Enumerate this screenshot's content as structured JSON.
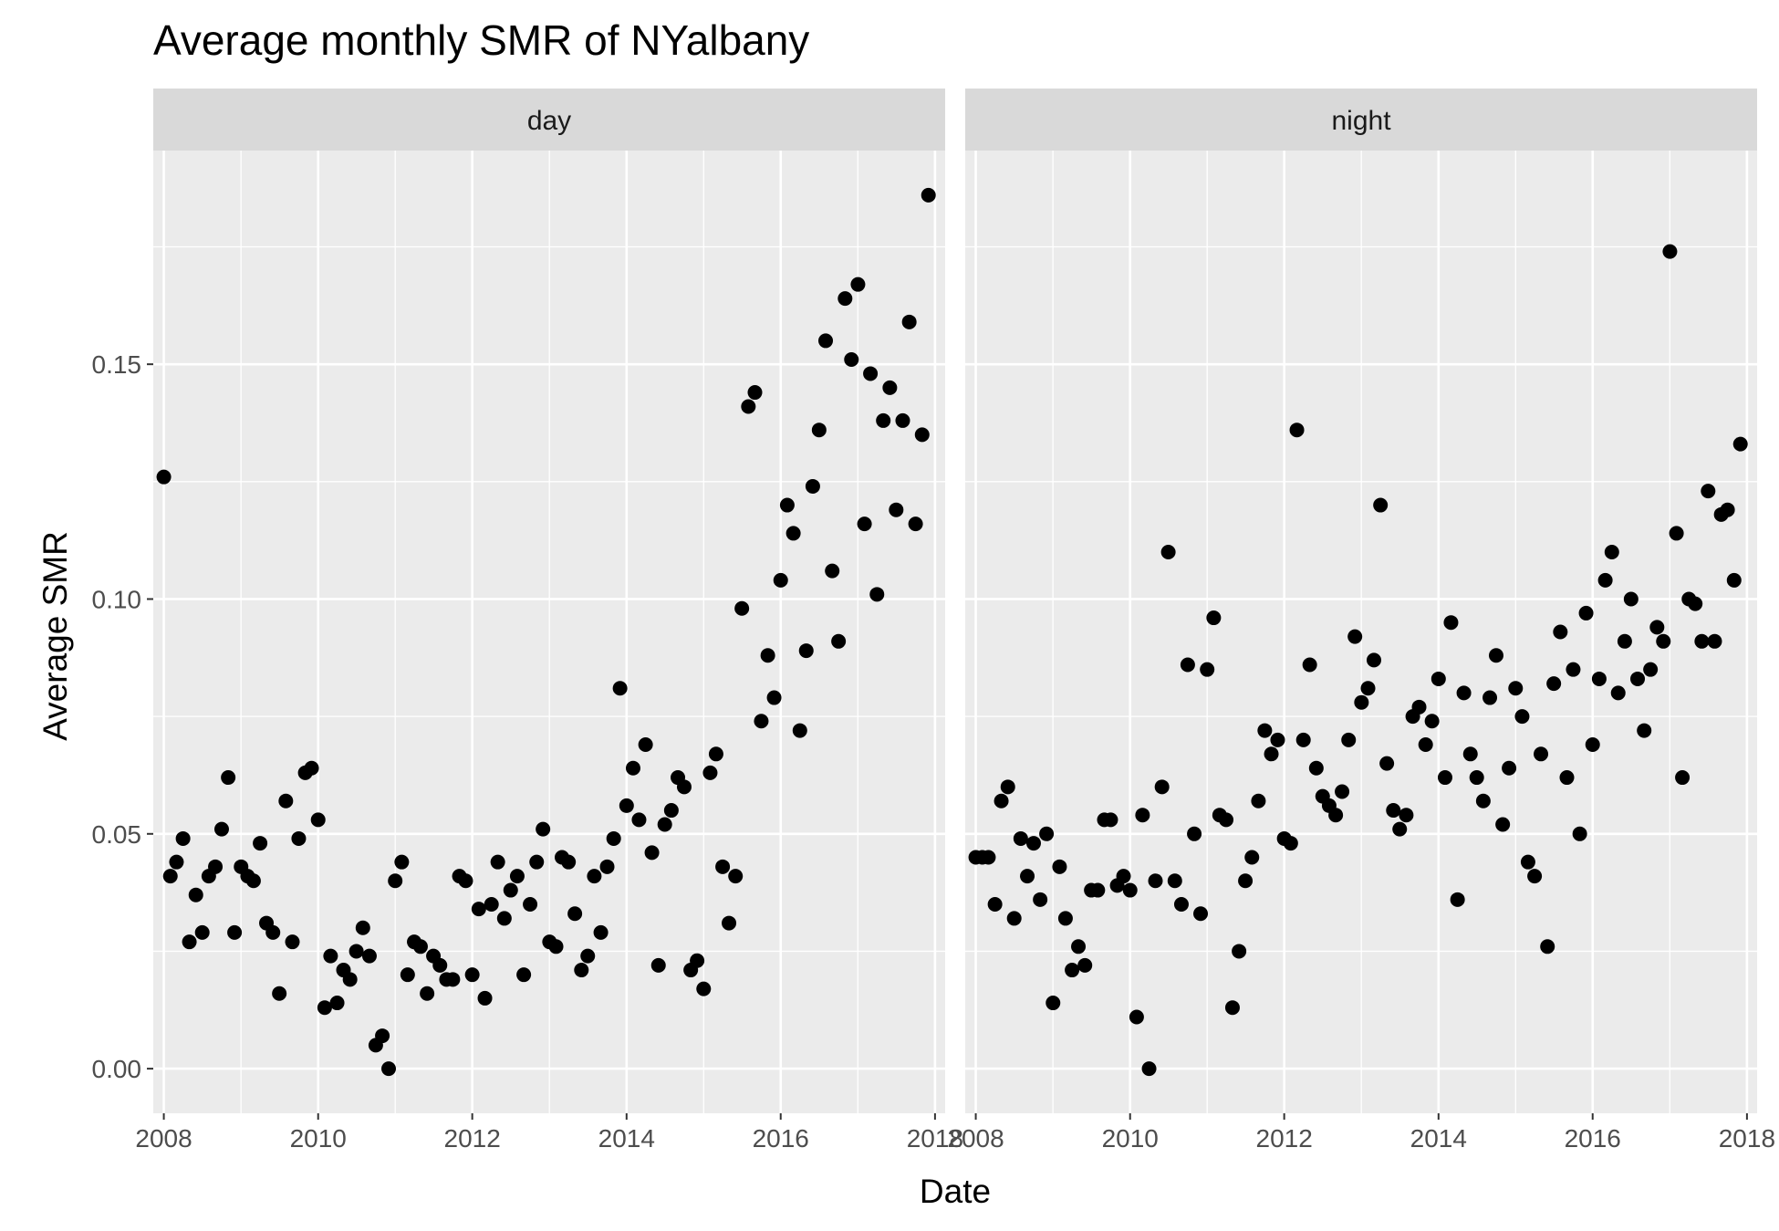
{
  "chart_data": {
    "type": "scatter",
    "title": "Average monthly SMR of NYalbany",
    "xlabel": "Date",
    "ylabel": "Average SMR",
    "x_range": [
      "2007-11-12",
      "2018-02-18"
    ],
    "ylim": [
      -0.0095,
      0.1955
    ],
    "x_ticks": [
      "2008",
      "2010",
      "2012",
      "2014",
      "2016",
      "2018"
    ],
    "y_ticks": [
      "0.00",
      "0.05",
      "0.10",
      "0.15"
    ],
    "grid": true,
    "point_color": "#000000",
    "panel_background": "#ebebeb",
    "strip_background": "#d9d9d9",
    "panels": [
      {
        "name": "day",
        "points": [
          [
            "2008-01-01",
            0.126
          ],
          [
            "2008-02-01",
            0.041
          ],
          [
            "2008-03-01",
            0.044
          ],
          [
            "2008-04-01",
            0.049
          ],
          [
            "2008-05-01",
            0.027
          ],
          [
            "2008-06-01",
            0.037
          ],
          [
            "2008-07-01",
            0.029
          ],
          [
            "2008-08-01",
            0.041
          ],
          [
            "2008-09-01",
            0.043
          ],
          [
            "2008-10-01",
            0.051
          ],
          [
            "2008-11-01",
            0.062
          ],
          [
            "2008-12-01",
            0.029
          ],
          [
            "2009-01-01",
            0.043
          ],
          [
            "2009-02-01",
            0.041
          ],
          [
            "2009-03-01",
            0.04
          ],
          [
            "2009-04-01",
            0.048
          ],
          [
            "2009-05-01",
            0.031
          ],
          [
            "2009-06-01",
            0.029
          ],
          [
            "2009-07-01",
            0.016
          ],
          [
            "2009-08-01",
            0.057
          ],
          [
            "2009-09-01",
            0.027
          ],
          [
            "2009-10-01",
            0.049
          ],
          [
            "2009-11-01",
            0.063
          ],
          [
            "2009-12-01",
            0.064
          ],
          [
            "2010-01-01",
            0.053
          ],
          [
            "2010-02-01",
            0.013
          ],
          [
            "2010-03-01",
            0.024
          ],
          [
            "2010-04-01",
            0.014
          ],
          [
            "2010-05-01",
            0.021
          ],
          [
            "2010-06-01",
            0.019
          ],
          [
            "2010-07-01",
            0.025
          ],
          [
            "2010-08-01",
            0.03
          ],
          [
            "2010-09-01",
            0.024
          ],
          [
            "2010-10-01",
            0.005
          ],
          [
            "2010-11-01",
            0.007
          ],
          [
            "2010-12-01",
            0.0
          ],
          [
            "2011-01-01",
            0.04
          ],
          [
            "2011-02-01",
            0.044
          ],
          [
            "2011-03-01",
            0.02
          ],
          [
            "2011-04-01",
            0.027
          ],
          [
            "2011-05-01",
            0.026
          ],
          [
            "2011-06-01",
            0.016
          ],
          [
            "2011-07-01",
            0.024
          ],
          [
            "2011-08-01",
            0.022
          ],
          [
            "2011-09-01",
            0.019
          ],
          [
            "2011-10-01",
            0.019
          ],
          [
            "2011-11-01",
            0.041
          ],
          [
            "2011-12-01",
            0.04
          ],
          [
            "2012-01-01",
            0.02
          ],
          [
            "2012-02-01",
            0.034
          ],
          [
            "2012-03-01",
            0.015
          ],
          [
            "2012-04-01",
            0.035
          ],
          [
            "2012-05-01",
            0.044
          ],
          [
            "2012-06-01",
            0.032
          ],
          [
            "2012-07-01",
            0.038
          ],
          [
            "2012-08-01",
            0.041
          ],
          [
            "2012-09-01",
            0.02
          ],
          [
            "2012-10-01",
            0.035
          ],
          [
            "2012-11-01",
            0.044
          ],
          [
            "2012-12-01",
            0.051
          ],
          [
            "2013-01-01",
            0.027
          ],
          [
            "2013-02-01",
            0.026
          ],
          [
            "2013-03-01",
            0.045
          ],
          [
            "2013-04-01",
            0.044
          ],
          [
            "2013-05-01",
            0.033
          ],
          [
            "2013-06-01",
            0.021
          ],
          [
            "2013-07-01",
            0.024
          ],
          [
            "2013-08-01",
            0.041
          ],
          [
            "2013-09-01",
            0.029
          ],
          [
            "2013-10-01",
            0.043
          ],
          [
            "2013-11-01",
            0.049
          ],
          [
            "2013-12-01",
            0.081
          ],
          [
            "2014-01-01",
            0.056
          ],
          [
            "2014-02-01",
            0.064
          ],
          [
            "2014-03-01",
            0.053
          ],
          [
            "2014-04-01",
            0.069
          ],
          [
            "2014-05-01",
            0.046
          ],
          [
            "2014-06-01",
            0.022
          ],
          [
            "2014-07-01",
            0.052
          ],
          [
            "2014-08-01",
            0.055
          ],
          [
            "2014-09-01",
            0.062
          ],
          [
            "2014-10-01",
            0.06
          ],
          [
            "2014-11-01",
            0.021
          ],
          [
            "2014-12-01",
            0.023
          ],
          [
            "2015-01-01",
            0.017
          ],
          [
            "2015-02-01",
            0.063
          ],
          [
            "2015-03-01",
            0.067
          ],
          [
            "2015-04-01",
            0.043
          ],
          [
            "2015-05-01",
            0.031
          ],
          [
            "2015-06-01",
            0.041
          ],
          [
            "2015-07-01",
            0.098
          ],
          [
            "2015-08-01",
            0.141
          ],
          [
            "2015-09-01",
            0.144
          ],
          [
            "2015-10-01",
            0.074
          ],
          [
            "2015-11-01",
            0.088
          ],
          [
            "2015-12-01",
            0.079
          ],
          [
            "2016-01-01",
            0.104
          ],
          [
            "2016-02-01",
            0.12
          ],
          [
            "2016-03-01",
            0.114
          ],
          [
            "2016-04-01",
            0.072
          ],
          [
            "2016-05-01",
            0.089
          ],
          [
            "2016-06-01",
            0.124
          ],
          [
            "2016-07-01",
            0.136
          ],
          [
            "2016-08-01",
            0.155
          ],
          [
            "2016-09-01",
            0.106
          ],
          [
            "2016-10-01",
            0.091
          ],
          [
            "2016-11-01",
            0.164
          ],
          [
            "2016-12-01",
            0.151
          ],
          [
            "2017-01-01",
            0.167
          ],
          [
            "2017-02-01",
            0.116
          ],
          [
            "2017-03-01",
            0.148
          ],
          [
            "2017-04-01",
            0.101
          ],
          [
            "2017-05-01",
            0.138
          ],
          [
            "2017-06-01",
            0.145
          ],
          [
            "2017-07-01",
            0.119
          ],
          [
            "2017-08-01",
            0.138
          ],
          [
            "2017-09-01",
            0.159
          ],
          [
            "2017-10-01",
            0.116
          ],
          [
            "2017-11-01",
            0.135
          ],
          [
            "2017-12-01",
            0.186
          ]
        ]
      },
      {
        "name": "night",
        "points": [
          [
            "2008-01-01",
            0.045
          ],
          [
            "2008-02-01",
            0.045
          ],
          [
            "2008-03-01",
            0.045
          ],
          [
            "2008-04-01",
            0.035
          ],
          [
            "2008-05-01",
            0.057
          ],
          [
            "2008-06-01",
            0.06
          ],
          [
            "2008-07-01",
            0.032
          ],
          [
            "2008-08-01",
            0.049
          ],
          [
            "2008-09-01",
            0.041
          ],
          [
            "2008-10-01",
            0.048
          ],
          [
            "2008-11-01",
            0.036
          ],
          [
            "2008-12-01",
            0.05
          ],
          [
            "2009-01-01",
            0.014
          ],
          [
            "2009-02-01",
            0.043
          ],
          [
            "2009-03-01",
            0.032
          ],
          [
            "2009-04-01",
            0.021
          ],
          [
            "2009-05-01",
            0.026
          ],
          [
            "2009-06-01",
            0.022
          ],
          [
            "2009-07-01",
            0.038
          ],
          [
            "2009-08-01",
            0.038
          ],
          [
            "2009-09-01",
            0.053
          ],
          [
            "2009-10-01",
            0.053
          ],
          [
            "2009-11-01",
            0.039
          ],
          [
            "2009-12-01",
            0.041
          ],
          [
            "2010-01-01",
            0.038
          ],
          [
            "2010-02-01",
            0.011
          ],
          [
            "2010-03-01",
            0.054
          ],
          [
            "2010-04-01",
            0.0
          ],
          [
            "2010-05-01",
            0.04
          ],
          [
            "2010-06-01",
            0.06
          ],
          [
            "2010-07-01",
            0.11
          ],
          [
            "2010-08-01",
            0.04
          ],
          [
            "2010-09-01",
            0.035
          ],
          [
            "2010-10-01",
            0.086
          ],
          [
            "2010-11-01",
            0.05
          ],
          [
            "2010-12-01",
            0.033
          ],
          [
            "2011-01-01",
            0.085
          ],
          [
            "2011-02-01",
            0.096
          ],
          [
            "2011-03-01",
            0.054
          ],
          [
            "2011-04-01",
            0.053
          ],
          [
            "2011-05-01",
            0.013
          ],
          [
            "2011-06-01",
            0.025
          ],
          [
            "2011-07-01",
            0.04
          ],
          [
            "2011-08-01",
            0.045
          ],
          [
            "2011-09-01",
            0.057
          ],
          [
            "2011-10-01",
            0.072
          ],
          [
            "2011-11-01",
            0.067
          ],
          [
            "2011-12-01",
            0.07
          ],
          [
            "2012-01-01",
            0.049
          ],
          [
            "2012-02-01",
            0.048
          ],
          [
            "2012-03-01",
            0.136
          ],
          [
            "2012-04-01",
            0.07
          ],
          [
            "2012-05-01",
            0.086
          ],
          [
            "2012-06-01",
            0.064
          ],
          [
            "2012-07-01",
            0.058
          ],
          [
            "2012-08-01",
            0.056
          ],
          [
            "2012-09-01",
            0.054
          ],
          [
            "2012-10-01",
            0.059
          ],
          [
            "2012-11-01",
            0.07
          ],
          [
            "2012-12-01",
            0.092
          ],
          [
            "2013-01-01",
            0.078
          ],
          [
            "2013-02-01",
            0.081
          ],
          [
            "2013-03-01",
            0.087
          ],
          [
            "2013-04-01",
            0.12
          ],
          [
            "2013-05-01",
            0.065
          ],
          [
            "2013-06-01",
            0.055
          ],
          [
            "2013-07-01",
            0.051
          ],
          [
            "2013-08-01",
            0.054
          ],
          [
            "2013-09-01",
            0.075
          ],
          [
            "2013-10-01",
            0.077
          ],
          [
            "2013-11-01",
            0.069
          ],
          [
            "2013-12-01",
            0.074
          ],
          [
            "2014-01-01",
            0.083
          ],
          [
            "2014-02-01",
            0.062
          ],
          [
            "2014-03-01",
            0.095
          ],
          [
            "2014-04-01",
            0.036
          ],
          [
            "2014-05-01",
            0.08
          ],
          [
            "2014-06-01",
            0.067
          ],
          [
            "2014-07-01",
            0.062
          ],
          [
            "2014-08-01",
            0.057
          ],
          [
            "2014-09-01",
            0.079
          ],
          [
            "2014-10-01",
            0.088
          ],
          [
            "2014-11-01",
            0.052
          ],
          [
            "2014-12-01",
            0.064
          ],
          [
            "2015-01-01",
            0.081
          ],
          [
            "2015-02-01",
            0.075
          ],
          [
            "2015-03-01",
            0.044
          ],
          [
            "2015-04-01",
            0.041
          ],
          [
            "2015-05-01",
            0.067
          ],
          [
            "2015-06-01",
            0.026
          ],
          [
            "2015-07-01",
            0.082
          ],
          [
            "2015-08-01",
            0.093
          ],
          [
            "2015-09-01",
            0.062
          ],
          [
            "2015-10-01",
            0.085
          ],
          [
            "2015-11-01",
            0.05
          ],
          [
            "2015-12-01",
            0.097
          ],
          [
            "2016-01-01",
            0.069
          ],
          [
            "2016-02-01",
            0.083
          ],
          [
            "2016-03-01",
            0.104
          ],
          [
            "2016-04-01",
            0.11
          ],
          [
            "2016-05-01",
            0.08
          ],
          [
            "2016-06-01",
            0.091
          ],
          [
            "2016-07-01",
            0.1
          ],
          [
            "2016-08-01",
            0.083
          ],
          [
            "2016-09-01",
            0.072
          ],
          [
            "2016-10-01",
            0.085
          ],
          [
            "2016-11-01",
            0.094
          ],
          [
            "2016-12-01",
            0.091
          ],
          [
            "2017-01-01",
            0.174
          ],
          [
            "2017-02-01",
            0.114
          ],
          [
            "2017-03-01",
            0.062
          ],
          [
            "2017-04-01",
            0.1
          ],
          [
            "2017-05-01",
            0.099
          ],
          [
            "2017-06-01",
            0.091
          ],
          [
            "2017-07-01",
            0.123
          ],
          [
            "2017-08-01",
            0.091
          ],
          [
            "2017-09-01",
            0.118
          ],
          [
            "2017-10-01",
            0.119
          ],
          [
            "2017-11-01",
            0.104
          ],
          [
            "2017-12-01",
            0.133
          ]
        ]
      }
    ]
  }
}
